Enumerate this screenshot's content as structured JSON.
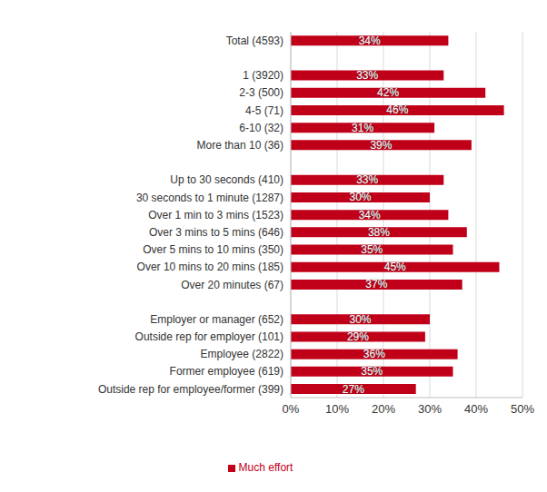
{
  "chart_data": {
    "type": "bar",
    "orientation": "horizontal",
    "categories": [
      "Total (4593)",
      null,
      "1 (3920)",
      "2-3 (500)",
      "4-5 (71)",
      "6-10 (32)",
      "More than 10 (36)",
      null,
      "Up to 30 seconds (410)",
      "30 seconds to 1 minute (1287)",
      "Over 1 min to 3 mins (1523)",
      "Over 3 mins to 5 mins (646)",
      "Over 5 mins to 10 mins (350)",
      "Over 10 mins to 20 mins (185)",
      "Over 20 minutes (67)",
      null,
      "Employer or manager (652)",
      "Outside rep for employer (101)",
      "Employee (2822)",
      "Former employee (619)",
      "Outside rep for employee/former (399)"
    ],
    "series": [
      {
        "name": "Much effort",
        "color": "#c00018",
        "values": [
          34,
          null,
          33,
          42,
          46,
          31,
          39,
          null,
          33,
          30,
          34,
          38,
          35,
          45,
          37,
          null,
          30,
          29,
          36,
          35,
          27
        ],
        "value_labels": [
          "34%",
          null,
          "33%",
          "42%",
          "46%",
          "31%",
          "39%",
          null,
          "33%",
          "30%",
          "34%",
          "38%",
          "35%",
          "45%",
          "37%",
          null,
          "30%",
          "29%",
          "36%",
          "35%",
          "27%"
        ]
      }
    ],
    "xlim": [
      0,
      50
    ],
    "xticks": [
      {
        "value": 0,
        "label": "0%"
      },
      {
        "value": 10,
        "label": "10%"
      },
      {
        "value": 20,
        "label": "20%"
      },
      {
        "value": 30,
        "label": "30%"
      },
      {
        "value": 40,
        "label": "40%"
      },
      {
        "value": 50,
        "label": "50%"
      }
    ],
    "grid": true,
    "data_labels": true,
    "legend": "bottom"
  }
}
